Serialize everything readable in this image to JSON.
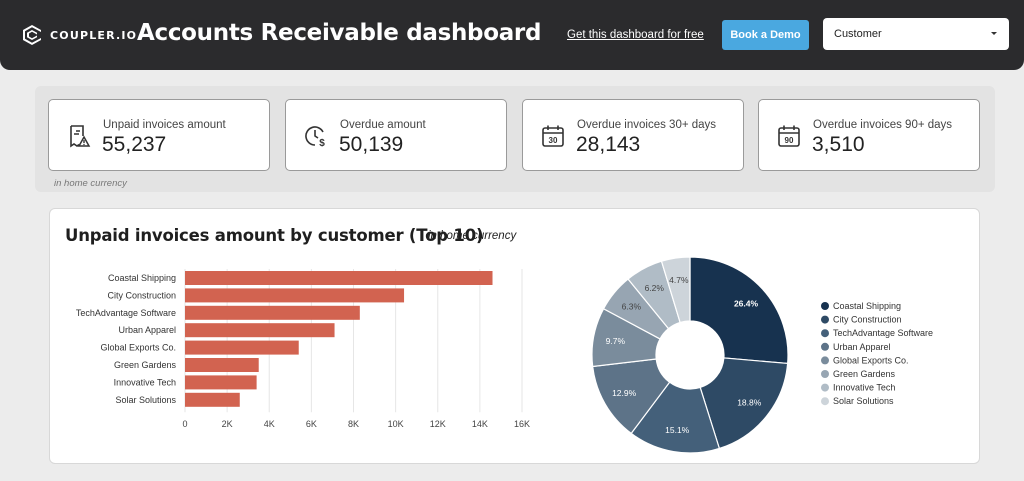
{
  "header": {
    "logo_text": "COUPLER.IO",
    "title": "Accounts Receivable dashboard",
    "free_link": "Get this dashboard for free",
    "demo_button": "Book a Demo",
    "filter_value": "Customer"
  },
  "kpis": [
    {
      "label": "Unpaid invoices amount",
      "value": "55,237",
      "icon": "invoice-alert-icon"
    },
    {
      "label": "Overdue amount",
      "value": "50,139",
      "icon": "clock-dollar-icon"
    },
    {
      "label": "Overdue invoices 30+ days",
      "value": "28,143",
      "icon": "calendar-30-icon"
    },
    {
      "label": "Overdue invoices 90+ days",
      "value": "3,510",
      "icon": "calendar-90-icon"
    }
  ],
  "kpi_note": "in home currency",
  "calendar_days": {
    "first": "30",
    "second": "90"
  },
  "chart_section": {
    "title": "Unpaid invoices amount by customer (Top 10)",
    "subtitle": "in home currency"
  },
  "colors": {
    "bar": "#d26350",
    "pie": [
      "#17324f",
      "#2e4a65",
      "#44607a",
      "#5d7388",
      "#7a8c9c",
      "#97a5b2",
      "#b0bcc6",
      "#cdd4da"
    ]
  },
  "chart_data": [
    {
      "type": "bar",
      "orientation": "horizontal",
      "categories": [
        "Coastal Shipping",
        "City Construction",
        "TechAdvantage Software",
        "Urban Apparel",
        "Global Exports Co.",
        "Green Gardens",
        "Innovative Tech",
        "Solar Solutions"
      ],
      "values": [
        14600,
        10400,
        8300,
        7100,
        5400,
        3500,
        3400,
        2600
      ],
      "x_ticks": [
        "0",
        "2K",
        "4K",
        "6K",
        "8K",
        "10K",
        "12K",
        "14K",
        "16K"
      ],
      "xlim": [
        0,
        16000
      ],
      "grid": true
    },
    {
      "type": "pie",
      "donut": true,
      "labels": [
        "Coastal Shipping",
        "City Construction",
        "TechAdvantage Software",
        "Urban Apparel",
        "Global Exports Co.",
        "Green Gardens",
        "Innovative Tech",
        "Solar Solutions"
      ],
      "values": [
        26.4,
        18.8,
        15.1,
        12.9,
        9.7,
        6.3,
        6.2,
        4.7
      ],
      "value_labels": [
        "26.4%",
        "18.8%",
        "15.1%",
        "12.9%",
        "9.7%",
        "6.3%",
        "6.2%",
        "4.7%"
      ],
      "legend": "right"
    }
  ]
}
